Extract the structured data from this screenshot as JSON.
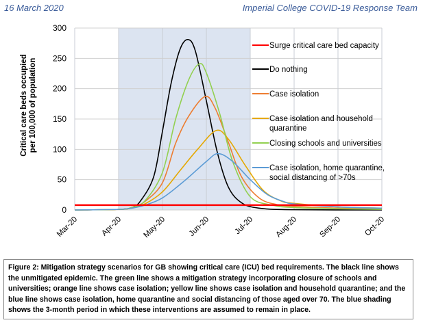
{
  "header": {
    "date": "16 March 2020",
    "team": "Imperial College COVID-19 Response Team"
  },
  "chart_data": {
    "type": "line",
    "ylabel": [
      "Critical care beds occupied",
      "per 100,000 of population"
    ],
    "xlabel": "",
    "x_unit": "months since 1 Mar 2020",
    "x_ticks": [
      "Mar-20",
      "Apr-20",
      "May-20",
      "Jun-20",
      "Jul-20",
      "Aug-20",
      "Sep-20",
      "Oct-20"
    ],
    "y_ticks": [
      0,
      50,
      100,
      150,
      200,
      250,
      300
    ],
    "ylim": [
      0,
      300
    ],
    "xlim": [
      0,
      7
    ],
    "grid": true,
    "shaded_period": [
      1,
      4
    ],
    "legend_position": "right",
    "series": [
      {
        "name": "Surge critical care bed capacity",
        "color": "#ff0000",
        "points": [
          [
            0,
            8
          ],
          [
            7,
            8
          ]
        ]
      },
      {
        "name": "Do nothing",
        "color": "#000000",
        "points": [
          [
            0,
            0
          ],
          [
            1,
            1
          ],
          [
            1.3,
            4
          ],
          [
            1.5,
            15
          ],
          [
            1.8,
            55
          ],
          [
            2.0,
            130
          ],
          [
            2.2,
            210
          ],
          [
            2.4,
            265
          ],
          [
            2.58,
            281
          ],
          [
            2.75,
            262
          ],
          [
            3.0,
            180
          ],
          [
            3.25,
            95
          ],
          [
            3.5,
            38
          ],
          [
            3.8,
            12
          ],
          [
            4.2,
            3
          ],
          [
            5,
            0.5
          ],
          [
            7,
            0
          ]
        ]
      },
      {
        "name": "Case isolation",
        "color": "#ed7d31",
        "points": [
          [
            0,
            0
          ],
          [
            1,
            1
          ],
          [
            1.3,
            4
          ],
          [
            1.6,
            14
          ],
          [
            2.0,
            45
          ],
          [
            2.3,
            110
          ],
          [
            2.6,
            155
          ],
          [
            2.97,
            187
          ],
          [
            3.2,
            168
          ],
          [
            3.5,
            112
          ],
          [
            3.8,
            55
          ],
          [
            4.2,
            20
          ],
          [
            4.6,
            9
          ],
          [
            5,
            6
          ],
          [
            6,
            3
          ],
          [
            7,
            2
          ]
        ]
      },
      {
        "name": "Case isolation and household quarantine",
        "color": "#e5a800",
        "points": [
          [
            0,
            0
          ],
          [
            1,
            1
          ],
          [
            1.3,
            3
          ],
          [
            1.6,
            10
          ],
          [
            2.0,
            30
          ],
          [
            2.4,
            65
          ],
          [
            2.8,
            100
          ],
          [
            3.22,
            131
          ],
          [
            3.5,
            117
          ],
          [
            3.9,
            72
          ],
          [
            4.3,
            32
          ],
          [
            4.7,
            15
          ],
          [
            5,
            11
          ],
          [
            6,
            5
          ],
          [
            7,
            3
          ]
        ]
      },
      {
        "name": "Closing schools and universities",
        "color": "#92d050",
        "points": [
          [
            0,
            0
          ],
          [
            1,
            1
          ],
          [
            1.3,
            4
          ],
          [
            1.6,
            15
          ],
          [
            2.0,
            62
          ],
          [
            2.3,
            150
          ],
          [
            2.6,
            215
          ],
          [
            2.84,
            241
          ],
          [
            3.0,
            226
          ],
          [
            3.3,
            160
          ],
          [
            3.6,
            80
          ],
          [
            4.0,
            22
          ],
          [
            4.5,
            8
          ],
          [
            5,
            4
          ],
          [
            6,
            2
          ],
          [
            7,
            1
          ]
        ]
      },
      {
        "name": "Case isolation, home quarantine, social distancing of >70s",
        "color": "#5b9bd5",
        "points": [
          [
            0,
            0
          ],
          [
            1,
            1
          ],
          [
            1.3,
            3
          ],
          [
            1.6,
            8
          ],
          [
            2.0,
            20
          ],
          [
            2.5,
            48
          ],
          [
            3.0,
            80
          ],
          [
            3.27,
            93
          ],
          [
            3.6,
            80
          ],
          [
            4.0,
            50
          ],
          [
            4.4,
            25
          ],
          [
            4.8,
            13
          ],
          [
            5,
            10
          ],
          [
            6,
            5
          ],
          [
            7,
            3
          ]
        ]
      }
    ]
  },
  "caption": "Figure 2: Mitigation strategy scenarios for GB showing critical care (ICU) bed requirements. The black line shows the unmitigated epidemic. The green line shows a mitigation strategy incorporating closure of schools and universities; orange line shows case isolation; yellow line shows case isolation and household quarantine; and the blue line shows case isolation, home quarantine and social distancing of those aged over 70. The blue shading shows the 3-month period in which these interventions are assumed to remain in place."
}
